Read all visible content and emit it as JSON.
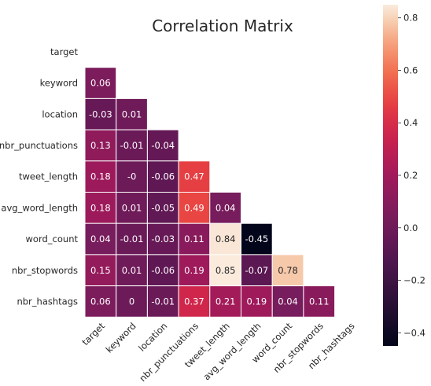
{
  "chart_data": {
    "type": "heatmap",
    "title": "Correlation Matrix",
    "mask": "upper-triangle-and-diagonal",
    "rows": [
      "target",
      "keyword",
      "location",
      "nbr_punctuations",
      "tweet_length",
      "avg_word_length",
      "word_count",
      "nbr_stopwords",
      "nbr_hashtags"
    ],
    "columns": [
      "target",
      "keyword",
      "location",
      "nbr_punctuations",
      "tweet_length",
      "avg_word_length",
      "word_count",
      "nbr_stopwords",
      "nbr_hashtags"
    ],
    "values": [
      [],
      [
        0.06
      ],
      [
        -0.03,
        0.01
      ],
      [
        0.13,
        -0.01,
        -0.04
      ],
      [
        0.18,
        -0.0,
        -0.06,
        0.47
      ],
      [
        0.18,
        0.01,
        -0.05,
        0.49,
        0.04
      ],
      [
        0.04,
        -0.01,
        -0.03,
        0.11,
        0.84,
        -0.45
      ],
      [
        0.15,
        0.01,
        -0.06,
        0.19,
        0.85,
        -0.07,
        0.78
      ],
      [
        0.06,
        0.0,
        -0.01,
        0.37,
        0.21,
        0.19,
        0.04,
        0.11
      ]
    ],
    "value_labels": [
      [],
      [
        "0.06"
      ],
      [
        "-0.03",
        "0.01"
      ],
      [
        "0.13",
        "-0.01",
        "-0.04"
      ],
      [
        "0.18",
        "-0",
        "-0.06",
        "0.47"
      ],
      [
        "0.18",
        "0.01",
        "-0.05",
        "0.49",
        "0.04"
      ],
      [
        "0.04",
        "-0.01",
        "-0.03",
        "0.11",
        "0.84",
        "-0.45"
      ],
      [
        "0.15",
        "0.01",
        "-0.06",
        "0.19",
        "0.85",
        "-0.07",
        "0.78"
      ],
      [
        "0.06",
        "0",
        "-0.01",
        "0.37",
        "0.21",
        "0.19",
        "0.04",
        "0.11"
      ]
    ],
    "colorscale": "rocket",
    "colorbar": {
      "vmin": -0.45,
      "vmax": 0.85,
      "ticks": [
        -0.4,
        -0.2,
        0.0,
        0.2,
        0.4,
        0.6,
        0.8
      ],
      "tick_labels": [
        "−0.4",
        "−0.2",
        "0.0",
        "0.2",
        "0.4",
        "0.6",
        "0.8"
      ]
    }
  }
}
